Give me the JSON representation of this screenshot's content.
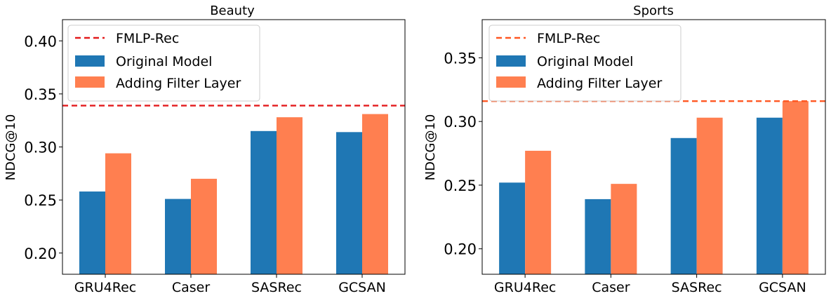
{
  "colors": {
    "original": "#1f77b4",
    "filter": "#ff7f50",
    "fmlp_beauty": "#e31a1c",
    "fmlp_sports": "#ff5722"
  },
  "chart_data": [
    {
      "type": "bar",
      "title": "Beauty",
      "xlabel": "",
      "ylabel": "NDCG@10",
      "categories": [
        "GRU4Rec",
        "Caser",
        "SASRec",
        "GCSAN"
      ],
      "series": [
        {
          "name": "Original Model",
          "values": [
            0.258,
            0.251,
            0.315,
            0.314
          ]
        },
        {
          "name": "Adding Filter Layer",
          "values": [
            0.294,
            0.27,
            0.328,
            0.331
          ]
        }
      ],
      "reference_line": {
        "name": "FMLP-Rec",
        "value": 0.339
      },
      "ylim": [
        0.18,
        0.42
      ],
      "yticks": [
        "0.20",
        "0.25",
        "0.30",
        "0.35",
        "0.40"
      ],
      "ytick_values": [
        0.2,
        0.25,
        0.3,
        0.35,
        0.4
      ],
      "legend": [
        "FMLP-Rec",
        "Original Model",
        "Adding Filter Layer"
      ],
      "legend_position": "top-left"
    },
    {
      "type": "bar",
      "title": "Sports",
      "xlabel": "",
      "ylabel": "NDCG@10",
      "categories": [
        "GRU4Rec",
        "Caser",
        "SASRec",
        "GCSAN"
      ],
      "series": [
        {
          "name": "Original Model",
          "values": [
            0.252,
            0.239,
            0.287,
            0.303
          ]
        },
        {
          "name": "Adding Filter Layer",
          "values": [
            0.277,
            0.251,
            0.303,
            0.316
          ]
        }
      ],
      "reference_line": {
        "name": "FMLP-Rec",
        "value": 0.316
      },
      "ylim": [
        0.18,
        0.38
      ],
      "yticks": [
        "0.20",
        "0.25",
        "0.30",
        "0.35"
      ],
      "ytick_values": [
        0.2,
        0.25,
        0.3,
        0.35
      ],
      "legend": [
        "FMLP-Rec",
        "Original Model",
        "Adding Filter Layer"
      ],
      "legend_position": "top-left"
    }
  ]
}
